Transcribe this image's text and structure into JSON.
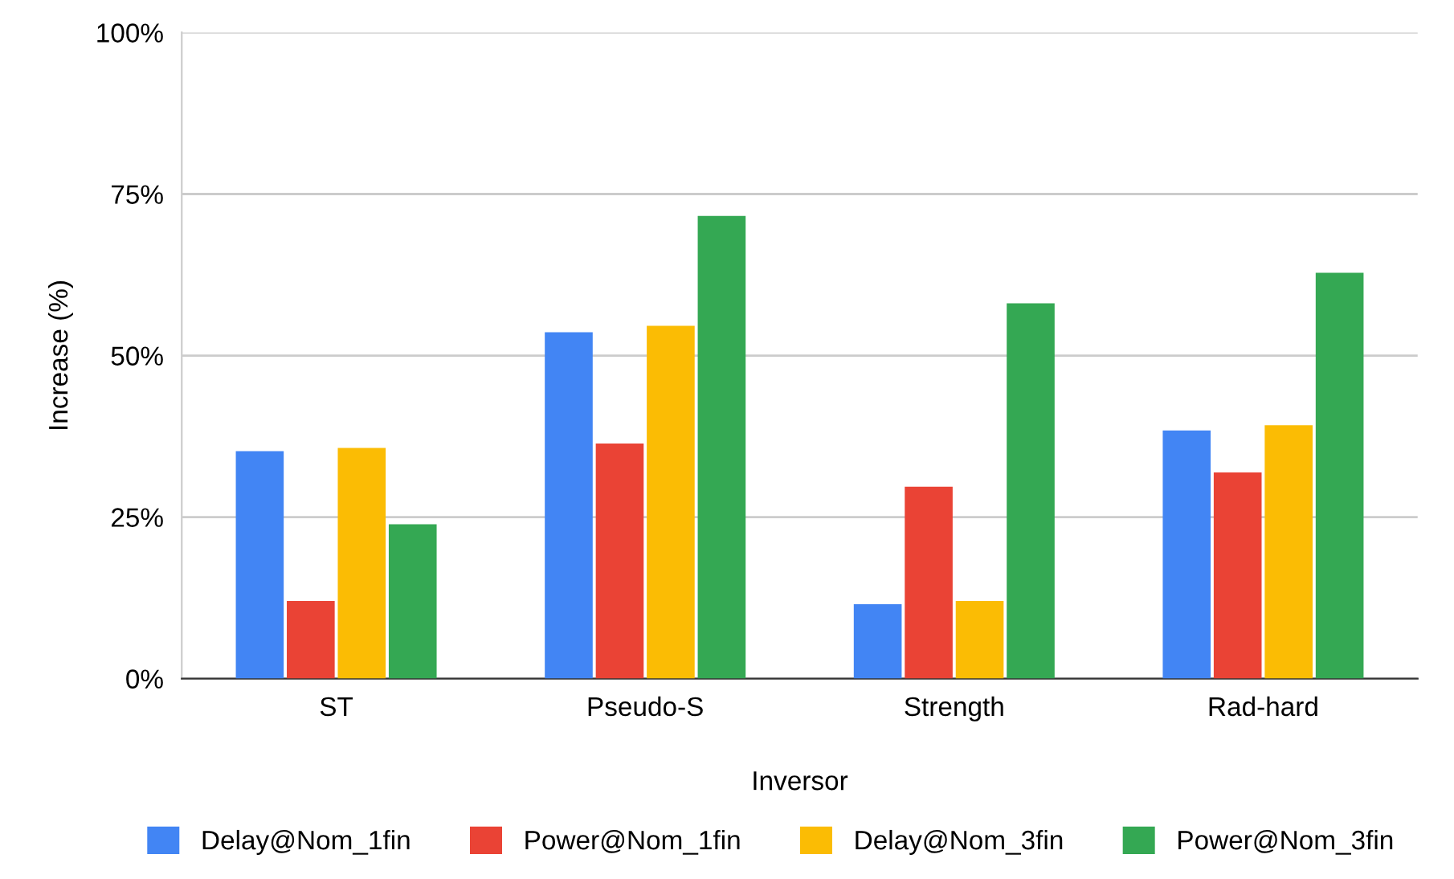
{
  "chart_data": {
    "type": "bar",
    "xlabel": "Inversor",
    "ylabel": "Increase (%)",
    "categories": [
      "ST",
      "Pseudo-S",
      "Strength",
      "Rad-hard"
    ],
    "series": [
      {
        "name": "Delay@Nom_1fin",
        "color": "#4285f4",
        "values": [
          35.2,
          53.6,
          11.5,
          38.4
        ]
      },
      {
        "name": "Power@Nom_1fin",
        "color": "#ea4335",
        "values": [
          12.0,
          36.4,
          29.7,
          31.9
        ]
      },
      {
        "name": "Delay@Nom_3fin",
        "color": "#fbbc04",
        "values": [
          35.7,
          54.6,
          12.0,
          39.2
        ]
      },
      {
        "name": "Power@Nom_3fin",
        "color": "#34a853",
        "values": [
          23.9,
          71.6,
          58.1,
          62.8
        ]
      }
    ],
    "ylim": [
      0,
      100
    ],
    "yticks": [
      {
        "value": 0,
        "label": "0%"
      },
      {
        "value": 25,
        "label": "25%"
      },
      {
        "value": 50,
        "label": "50%"
      },
      {
        "value": 75,
        "label": "75%"
      },
      {
        "value": 100,
        "label": "100%"
      }
    ],
    "grid": "y",
    "legend": "bottom"
  }
}
